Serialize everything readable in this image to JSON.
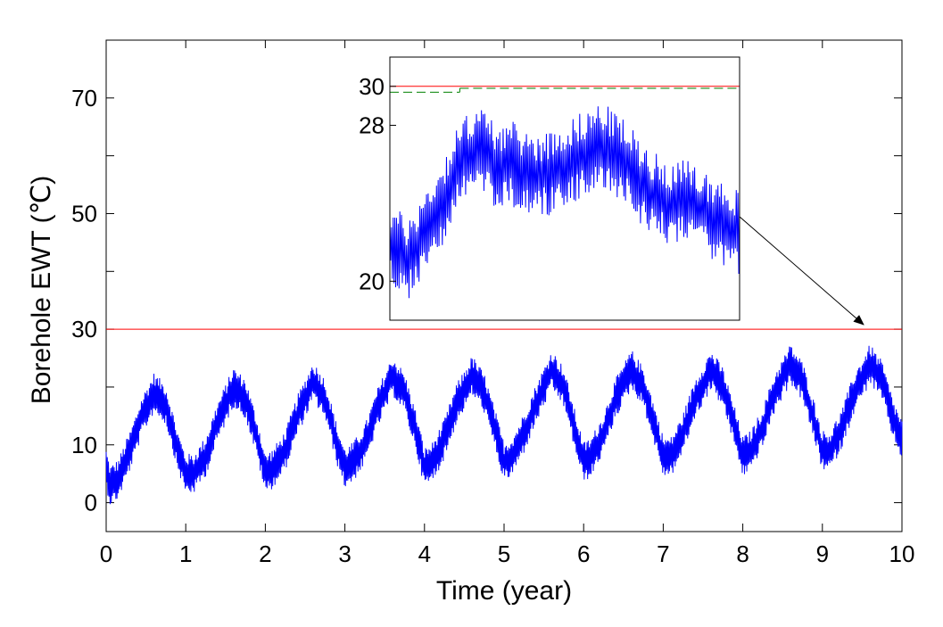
{
  "chart_data": [
    {
      "id": "main",
      "type": "line",
      "title": "",
      "xlabel": "Time (year)",
      "ylabel": "Borehole EWT (℃)",
      "xlim": [
        0,
        10
      ],
      "ylim": [
        -5,
        80
      ],
      "xticks": [
        0,
        1,
        2,
        3,
        4,
        5,
        6,
        7,
        8,
        9,
        10
      ],
      "yticks": [
        0,
        10,
        30,
        50,
        70
      ],
      "x_tick_labels": [
        "0",
        "1",
        "2",
        "3",
        "4",
        "5",
        "6",
        "7",
        "8",
        "9",
        "10"
      ],
      "y_tick_labels": [
        "0",
        "10",
        "30",
        "50",
        "70"
      ],
      "grid": false,
      "reference_lines": [
        {
          "orientation": "horizontal",
          "y": 30,
          "color": "#ff0000",
          "style": "solid"
        }
      ],
      "series": [
        {
          "color": "#0000ff",
          "style": "solid",
          "description_points": {
            "x": [
              0,
              0.05,
              0.15,
              0.3,
              0.45,
              0.6,
              0.75,
              0.9,
              1.0,
              1.1,
              1.25,
              1.4,
              1.6,
              1.75,
              1.9,
              2.0,
              2.1,
              2.25,
              2.4,
              2.6,
              2.75,
              2.9,
              3.0,
              3.1,
              3.25,
              3.4,
              3.6,
              3.75,
              3.9,
              4.0,
              4.1,
              4.25,
              4.4,
              4.6,
              4.75,
              4.9,
              5.0,
              5.1,
              5.25,
              5.4,
              5.6,
              5.75,
              5.9,
              6.0,
              6.1,
              6.25,
              6.4,
              6.6,
              6.75,
              6.9,
              7.0,
              7.1,
              7.25,
              7.4,
              7.6,
              7.75,
              7.9,
              8.0,
              8.1,
              8.25,
              8.4,
              8.6,
              8.75,
              8.9,
              9.0,
              9.1,
              9.25,
              9.4,
              9.6,
              9.75,
              9.9,
              10.0
            ],
            "y_mean": [
              6,
              3,
              4,
              9,
              15,
              19,
              17,
              9,
              5,
              5,
              8,
              14,
              20,
              18,
              11,
              5,
              6,
              9,
              15,
              21,
              18,
              10,
              6,
              7,
              10,
              16,
              22,
              19,
              12,
              6,
              7,
              11,
              17,
              22,
              19,
              12,
              7,
              8,
              12,
              17,
              23,
              20,
              12,
              7,
              8,
              12,
              18,
              23,
              20,
              13,
              8,
              8,
              12,
              18,
              23,
              20,
              13,
              8,
              9,
              13,
              19,
              24,
              21,
              14,
              9,
              9,
              13,
              19,
              24,
              21,
              14,
              11
            ],
            "y_amplitude": 3.5
          }
        }
      ]
    },
    {
      "id": "inset",
      "type": "line",
      "title": "",
      "xlabel": "",
      "ylabel": "",
      "xlim": [
        9.0,
        10.0
      ],
      "ylim": [
        18,
        31.5
      ],
      "yticks": [
        20,
        28,
        30
      ],
      "y_tick_labels": [
        "20",
        "28",
        "30"
      ],
      "grid": false,
      "zoom_of": "main",
      "zoom_target": {
        "x": 9.6,
        "y": 30
      },
      "reference_lines": [
        {
          "orientation": "horizontal",
          "y": 30,
          "color": "#ff0000",
          "style": "solid"
        },
        {
          "orientation": "horizontal",
          "y": 29.7,
          "color": "#008000",
          "style": "dashed",
          "x_start_fraction": 0,
          "x_end_fraction": 0.2
        },
        {
          "orientation": "horizontal",
          "y": 29.9,
          "color": "#008000",
          "style": "dashed",
          "x_start_fraction": 0.2,
          "x_end_fraction": 1
        }
      ],
      "series": [
        {
          "color": "#0000ff",
          "style": "solid",
          "description_points": {
            "x": [
              0.0,
              0.05,
              0.1,
              0.15,
              0.2,
              0.25,
              0.3,
              0.35,
              0.4,
              0.45,
              0.5,
              0.55,
              0.6,
              0.65,
              0.7,
              0.75,
              0.8,
              0.85,
              0.9,
              0.95,
              1.0
            ],
            "y_mean": [
              22,
              21,
              22.5,
              24,
              26,
              27,
              26,
              26,
              25.5,
              25.5,
              26,
              26.5,
              27,
              26.5,
              25.5,
              24.5,
              24,
              24,
              23.5,
              23,
              22.5
            ],
            "y_amplitude": 2.2
          }
        }
      ]
    }
  ]
}
